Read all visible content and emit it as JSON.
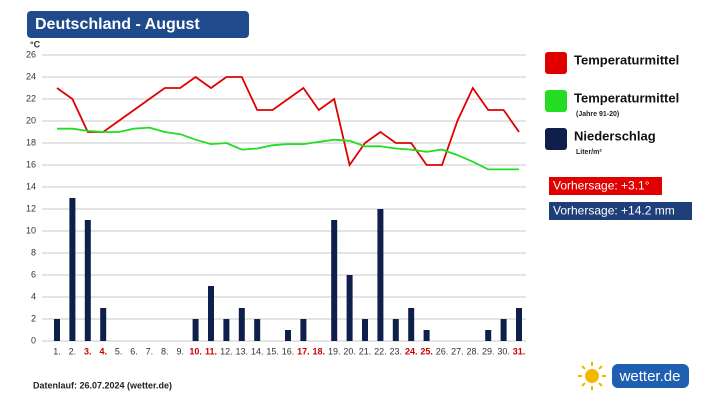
{
  "chart_data": {
    "type": "combo",
    "title": "Deutschland - August",
    "y_unit": "°C",
    "categories": [
      "1.",
      "2.",
      "3.",
      "4.",
      "5.",
      "6.",
      "7.",
      "8.",
      "9.",
      "10.",
      "11.",
      "12.",
      "13.",
      "14.",
      "15.",
      "16.",
      "17.",
      "18.",
      "19.",
      "20.",
      "21.",
      "22.",
      "23.",
      "24.",
      "25.",
      "26.",
      "27.",
      "28.",
      "29.",
      "30.",
      "31."
    ],
    "highlighted_categories": [
      2,
      3,
      9,
      10,
      16,
      17,
      23,
      24,
      30
    ],
    "highlight_color": "#cc0000",
    "ylim": [
      0,
      26
    ],
    "yticks": [
      0,
      2,
      4,
      6,
      8,
      10,
      12,
      14,
      16,
      18,
      20,
      22,
      24,
      26
    ],
    "grid": true,
    "series": [
      {
        "name": "Temperaturmittel",
        "type": "line",
        "color": "#e00000",
        "values": [
          23,
          22,
          19,
          19,
          20,
          21,
          22,
          23,
          23,
          24,
          23,
          24,
          24,
          21,
          21,
          22,
          23,
          21,
          22,
          16,
          18,
          19,
          18,
          18,
          16,
          16,
          20,
          23,
          21,
          21,
          19
        ]
      },
      {
        "name": "Temperaturmittel",
        "sublabel": "(Jahre 91-20)",
        "type": "line",
        "color": "#22dd22",
        "values": [
          19.3,
          19.3,
          19.1,
          19,
          19,
          19.3,
          19.4,
          19,
          18.8,
          18.3,
          17.9,
          18,
          17.4,
          17.5,
          17.8,
          17.9,
          17.9,
          18.1,
          18.3,
          18.2,
          17.7,
          17.7,
          17.5,
          17.4,
          17.2,
          17.4,
          16.9,
          16.3,
          15.6,
          15.6,
          15.6
        ]
      },
      {
        "name": "Niederschlag",
        "sublabel": "Liter/m²",
        "type": "bar",
        "color": "#0d1f4a",
        "values": [
          2,
          13,
          11,
          3,
          0,
          0,
          0,
          0,
          0,
          2,
          5,
          2,
          3,
          2,
          0,
          1,
          2,
          0,
          11,
          6,
          2,
          12,
          2,
          3,
          1,
          0,
          0,
          0,
          1,
          2,
          3
        ]
      }
    ],
    "forecasts": [
      {
        "label": "Vorhersage: +3.1°",
        "color": "#e00000"
      },
      {
        "label": "Vorhersage: +14.2 mm",
        "color": "#1f3f7a"
      }
    ],
    "source": "Datenlauf: 26.07.2024 (wetter.de)",
    "logo": "wetter.de"
  }
}
